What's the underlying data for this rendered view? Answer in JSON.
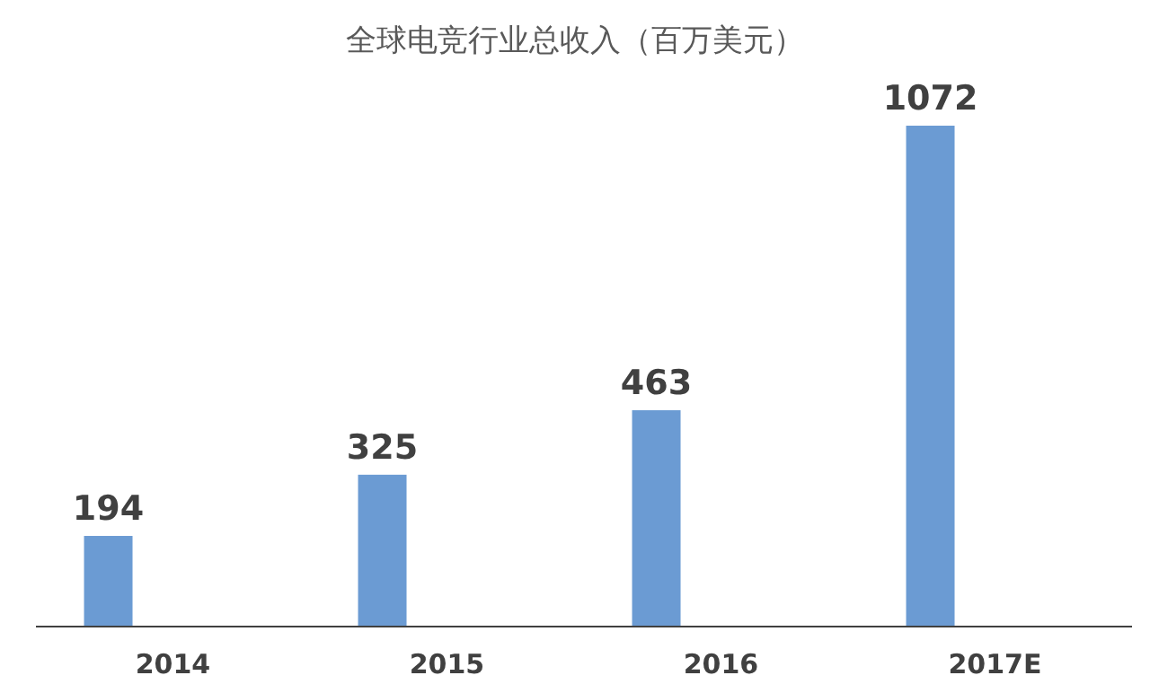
{
  "chart_data": {
    "type": "bar",
    "title": "全球电竞行业总收入（百万美元）",
    "categories": [
      "2014",
      "2015",
      "2016",
      "2017E"
    ],
    "values": [
      194,
      325,
      463,
      1072
    ],
    "color": "#6b9bd3",
    "data_labels": true
  }
}
